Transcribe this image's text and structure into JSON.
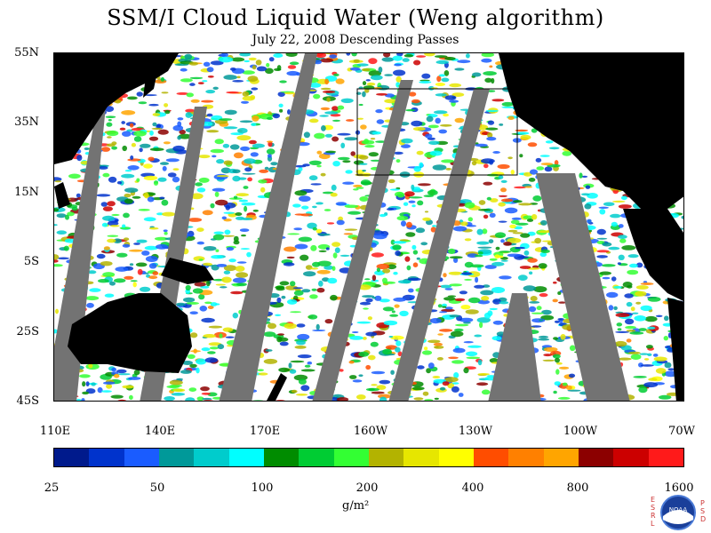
{
  "title": "SSM/I Cloud Liquid Water (Weng algorithm)",
  "subtitle": "July 22, 2008  Descending Passes",
  "lat_labels": [
    "55N",
    "35N",
    "15N",
    "5S",
    "25S",
    "45S"
  ],
  "lon_labels": [
    "110E",
    "140E",
    "170E",
    "160W",
    "130W",
    "100W",
    "70W"
  ],
  "colorbar": {
    "labels": [
      "25",
      "50",
      "100",
      "200",
      "400",
      "800",
      "1600"
    ],
    "unit": "g/m²",
    "colors": [
      "#001a8c",
      "#0033cc",
      "#1a5cff",
      "#009999",
      "#00cccc",
      "#00ffff",
      "#008c00",
      "#00cc33",
      "#33ff33",
      "#b3b300",
      "#e6e600",
      "#ffff00",
      "#ff4d00",
      "#ff8000",
      "#ffa500",
      "#8c0000",
      "#cc0000",
      "#ff1a1a"
    ]
  },
  "logo": {
    "letters_left": "ESRL",
    "letters_right": "PSD",
    "emblem": "NOAA"
  },
  "colors": {
    "land": "#000000",
    "missing_data": "#737373",
    "no_cloud": "#ffffff"
  }
}
